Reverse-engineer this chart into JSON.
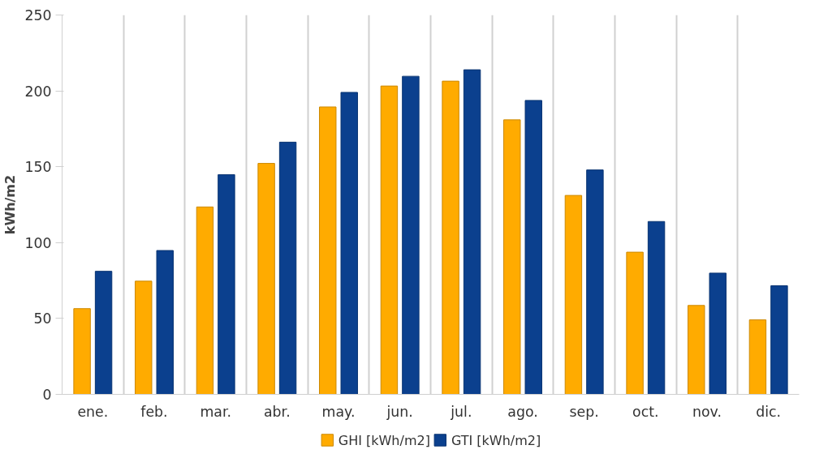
{
  "chart_data": {
    "type": "bar",
    "ylabel": "kWh/m2",
    "categories": [
      "ene.",
      "feb.",
      "mar.",
      "abr.",
      "may.",
      "jun.",
      "jul.",
      "ago.",
      "sep.",
      "oct.",
      "nov.",
      "dic."
    ],
    "series": [
      {
        "name": "GHI [kWh/m2]",
        "color": "#ffab00",
        "values": [
          56.5,
          74.6,
          123.5,
          152.2,
          189.4,
          203.2,
          206.4,
          180.9,
          131.1,
          93.7,
          58.6,
          49.1
        ]
      },
      {
        "name": "GTI [kWh/m2]",
        "color": "#0b408e",
        "values": [
          81.1,
          94.8,
          144.8,
          166.2,
          199.0,
          209.6,
          213.9,
          193.7,
          147.9,
          113.9,
          79.9,
          71.6
        ]
      }
    ],
    "ylim": [
      0,
      250
    ],
    "yticks": [
      0,
      50,
      100,
      150,
      200,
      250
    ],
    "grid": "x",
    "legend": "bottom"
  }
}
